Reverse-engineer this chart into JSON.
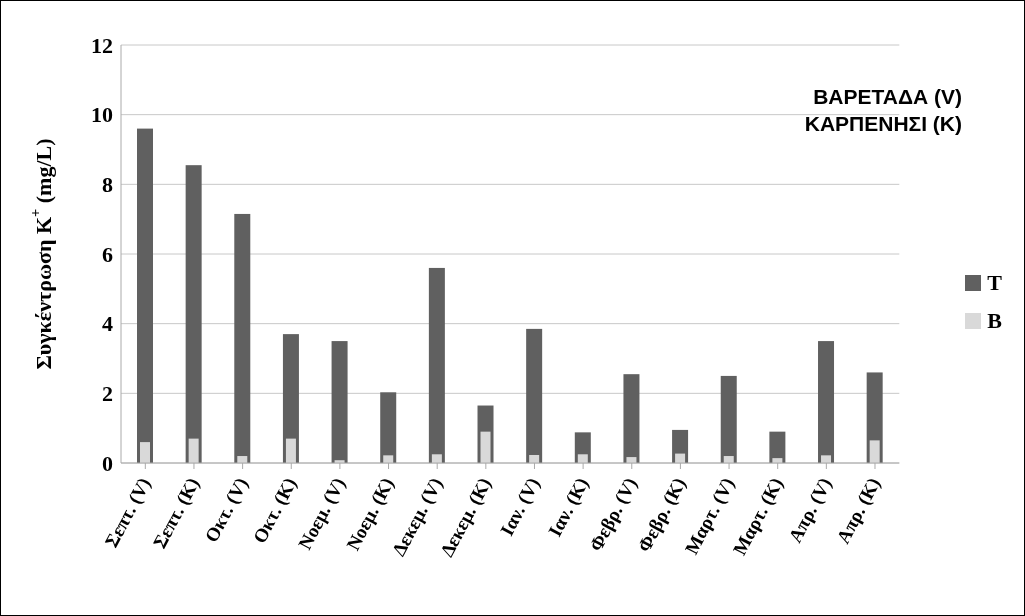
{
  "chart_data": {
    "type": "bar",
    "ylabel": "Συγκέντρωση K$^{+}$ (mg/L)",
    "annotations": [
      "ΒΑΡΕΤΑΔΑ (V)",
      "ΚΑΡΠΕΝΗΣΙ (K)"
    ],
    "categories": [
      "Σεπτ. (V)",
      "Σεπτ. (K)",
      "Οκτ. (V)",
      "Οκτ. (K)",
      "Νοεμ. (V)",
      "Νοεμ. (K)",
      "Δεκεμ. (V)",
      "Δεκεμ. (K)",
      "Ιαν. (V)",
      "Ιαν. (K)",
      "Φεβρ. (V)",
      "Φεβρ. (K)",
      "Μαρτ. (V)",
      "Μαρτ. (K)",
      "Απρ. (V)",
      "Απρ. (K)"
    ],
    "series": [
      {
        "name": "T",
        "color": "#606060",
        "values": [
          9.6,
          8.55,
          7.15,
          3.7,
          3.5,
          2.03,
          5.6,
          1.65,
          3.85,
          0.88,
          2.55,
          0.95,
          2.5,
          0.9,
          3.5,
          2.6
        ]
      },
      {
        "name": "B",
        "color": "#d9d9d9",
        "values": [
          0.6,
          0.7,
          0.2,
          0.7,
          0.08,
          0.22,
          0.25,
          0.9,
          0.23,
          0.25,
          0.17,
          0.27,
          0.2,
          0.14,
          0.22,
          0.65
        ]
      }
    ],
    "ylim": [
      0,
      12
    ],
    "yticks": [
      0,
      2,
      4,
      6,
      8,
      10,
      12
    ],
    "grid": "y",
    "legend": "right"
  }
}
